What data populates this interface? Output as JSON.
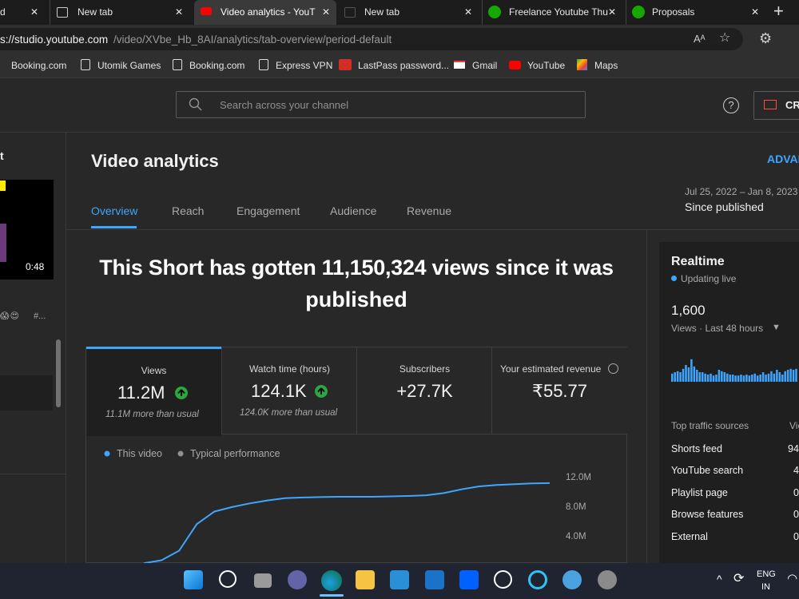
{
  "browser": {
    "tabs": [
      {
        "title": "d"
      },
      {
        "title": "New tab"
      },
      {
        "title": "Video analytics - YouT"
      },
      {
        "title": "New tab"
      },
      {
        "title": "Freelance Youtube Thu"
      },
      {
        "title": "Proposals"
      }
    ],
    "address_host": "s://studio.youtube.com",
    "address_path": "/video/XVbe_Hb_8AI/analytics/tab-overview/period-default",
    "bookmarks": [
      "Booking.com",
      "Utomik Games",
      "Booking.com",
      "Express VPN",
      "LastPass password...",
      "Gmail",
      "YouTube",
      "Maps"
    ]
  },
  "header": {
    "search_placeholder": "Search across your channel",
    "create_label": "CR"
  },
  "sidebar": {
    "title": "t",
    "duration": "0:48",
    "caption": "#..."
  },
  "page": {
    "title": "Video analytics",
    "advanced": "ADVAN",
    "tabs": [
      "Overview",
      "Reach",
      "Engagement",
      "Audience",
      "Revenue"
    ],
    "date_range": "Jul 25, 2022 – Jan 8, 2023",
    "period": "Since published",
    "headline_line1": "This Short has gotten 11,150,324 views since it was",
    "headline_line2": "published"
  },
  "metrics": [
    {
      "label": "Views",
      "value": "11.2M",
      "note": "11.1M more than usual"
    },
    {
      "label": "Watch time (hours)",
      "value": "124.1K",
      "note": "124.0K more than usual"
    },
    {
      "label": "Subscribers",
      "value": "+27.7K"
    },
    {
      "label": "Your estimated revenue",
      "value": "₹55.77"
    }
  ],
  "chart_data": {
    "type": "line",
    "legend": [
      {
        "name": "This video",
        "color": "#3ea6ff"
      },
      {
        "name": "Typical performance",
        "color": "#909090"
      }
    ],
    "values": [
      300000,
      700000,
      2000000,
      5600000,
      7300000,
      7900000,
      8400000,
      8800000,
      9100000,
      9200000,
      9250000,
      9300000,
      9300000,
      9300000,
      9350000,
      9400000,
      9500000,
      9800000,
      10300000,
      10700000,
      10900000,
      11000000,
      11100000,
      11150000
    ],
    "color": "#3ea6ff",
    "ylim": [
      0,
      12000000
    ],
    "yticks": [
      {
        "value": 12000000,
        "label": "12.0M"
      },
      {
        "value": 8000000,
        "label": "8.0M"
      },
      {
        "value": 4000000,
        "label": "4.0M"
      }
    ],
    "grid": false
  },
  "realtime": {
    "title": "Realtime",
    "status": "Updating live",
    "views": "1,600",
    "period": "Views · Last 48 hours",
    "bars": {
      "type": "bar",
      "color": "#3ea6ff",
      "values": [
        17,
        20,
        22,
        20,
        27,
        35,
        30,
        47,
        32,
        25,
        20,
        20,
        17,
        15,
        17,
        13,
        15,
        25,
        22,
        20,
        17,
        15,
        15,
        13,
        13,
        15,
        13,
        15,
        13,
        15,
        17,
        13,
        15,
        20,
        15,
        17,
        22,
        17,
        25,
        20,
        15,
        22,
        25,
        27,
        25,
        27
      ]
    },
    "traffic_title": "Top traffic sources",
    "traffic_column": "Vie",
    "traffic": [
      {
        "source": "Shorts feed",
        "value": "94"
      },
      {
        "source": "YouTube search",
        "value": "4"
      },
      {
        "source": "Playlist page",
        "value": "0"
      },
      {
        "source": "Browse features",
        "value": "0"
      },
      {
        "source": "External",
        "value": "0"
      }
    ]
  },
  "taskbar": {
    "lang": "ENG",
    "region": "IN"
  }
}
